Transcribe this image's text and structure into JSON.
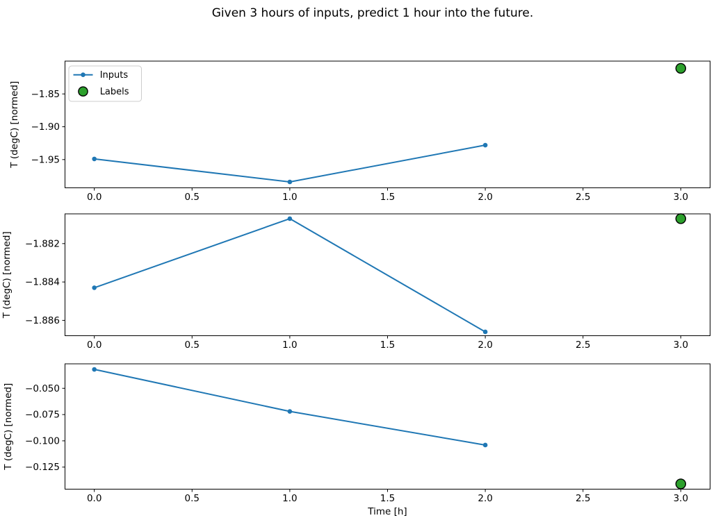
{
  "title": "Given 3 hours of inputs, predict 1 hour into the future.",
  "legend": {
    "position": "upper-left-subplot-1",
    "entries": [
      {
        "label": "Inputs",
        "marker": "line-with-dot",
        "color": "#1f77b4"
      },
      {
        "label": "Labels",
        "marker": "circle",
        "color": "#2ca02c"
      }
    ]
  },
  "colors": {
    "inputs_line": "#1f77b4",
    "labels_fill": "#2ca02c",
    "labels_edge": "#000000",
    "axis": "#000000",
    "legend_border": "#cccccc",
    "background": "#ffffff"
  },
  "chart_data": [
    {
      "type": "line",
      "subplot": 1,
      "ylabel": "T (degC) [normed]",
      "xlabel": "",
      "x": [
        0.0,
        1.0,
        2.0
      ],
      "series": [
        {
          "name": "Inputs",
          "values": [
            -1.949,
            -1.984,
            -1.928
          ]
        }
      ],
      "label_point": {
        "name": "Labels",
        "x": 3.0,
        "y": -1.811
      },
      "xlim": [
        -0.15,
        3.15
      ],
      "ylim": [
        -1.993,
        -1.8
      ],
      "xticks": {
        "values": [
          0.0,
          0.5,
          1.0,
          1.5,
          2.0,
          2.5,
          3.0
        ],
        "labels": [
          "0.0",
          "0.5",
          "1.0",
          "1.5",
          "2.0",
          "2.5",
          "3.0"
        ]
      },
      "yticks": {
        "values": [
          -1.85,
          -1.9,
          -1.95
        ],
        "labels": [
          "−1.85",
          "−1.90",
          "−1.95"
        ]
      },
      "grid": false,
      "legend_visible": true
    },
    {
      "type": "line",
      "subplot": 2,
      "ylabel": "T (degC) [normed]",
      "xlabel": "",
      "x": [
        0.0,
        1.0,
        2.0
      ],
      "series": [
        {
          "name": "Inputs",
          "values": [
            -1.8843,
            -1.8807,
            -1.8866
          ]
        }
      ],
      "label_point": {
        "name": "Labels",
        "x": 3.0,
        "y": -1.8807
      },
      "xlim": [
        -0.15,
        3.15
      ],
      "ylim": [
        -1.8868,
        -1.88045
      ],
      "xticks": {
        "values": [
          0.0,
          0.5,
          1.0,
          1.5,
          2.0,
          2.5,
          3.0
        ],
        "labels": [
          "0.0",
          "0.5",
          "1.0",
          "1.5",
          "2.0",
          "2.5",
          "3.0"
        ]
      },
      "yticks": {
        "values": [
          -1.882,
          -1.884,
          -1.886
        ],
        "labels": [
          "−1.882",
          "−1.884",
          "−1.886"
        ]
      },
      "grid": false,
      "legend_visible": false
    },
    {
      "type": "line",
      "subplot": 3,
      "ylabel": "T (degC) [normed]",
      "xlabel": "Time [h]",
      "x": [
        0.0,
        1.0,
        2.0
      ],
      "series": [
        {
          "name": "Inputs",
          "values": [
            -0.032,
            -0.072,
            -0.104
          ]
        }
      ],
      "label_point": {
        "name": "Labels",
        "x": 3.0,
        "y": -0.141
      },
      "xlim": [
        -0.15,
        3.15
      ],
      "ylim": [
        -0.146,
        -0.0267
      ],
      "xticks": {
        "values": [
          0.0,
          0.5,
          1.0,
          1.5,
          2.0,
          2.5,
          3.0
        ],
        "labels": [
          "0.0",
          "0.5",
          "1.0",
          "1.5",
          "2.0",
          "2.5",
          "3.0"
        ]
      },
      "yticks": {
        "values": [
          -0.05,
          -0.075,
          -0.1,
          -0.125
        ],
        "labels": [
          "−0.050",
          "−0.075",
          "−0.100",
          "−0.125"
        ]
      },
      "grid": false,
      "legend_visible": false
    }
  ]
}
